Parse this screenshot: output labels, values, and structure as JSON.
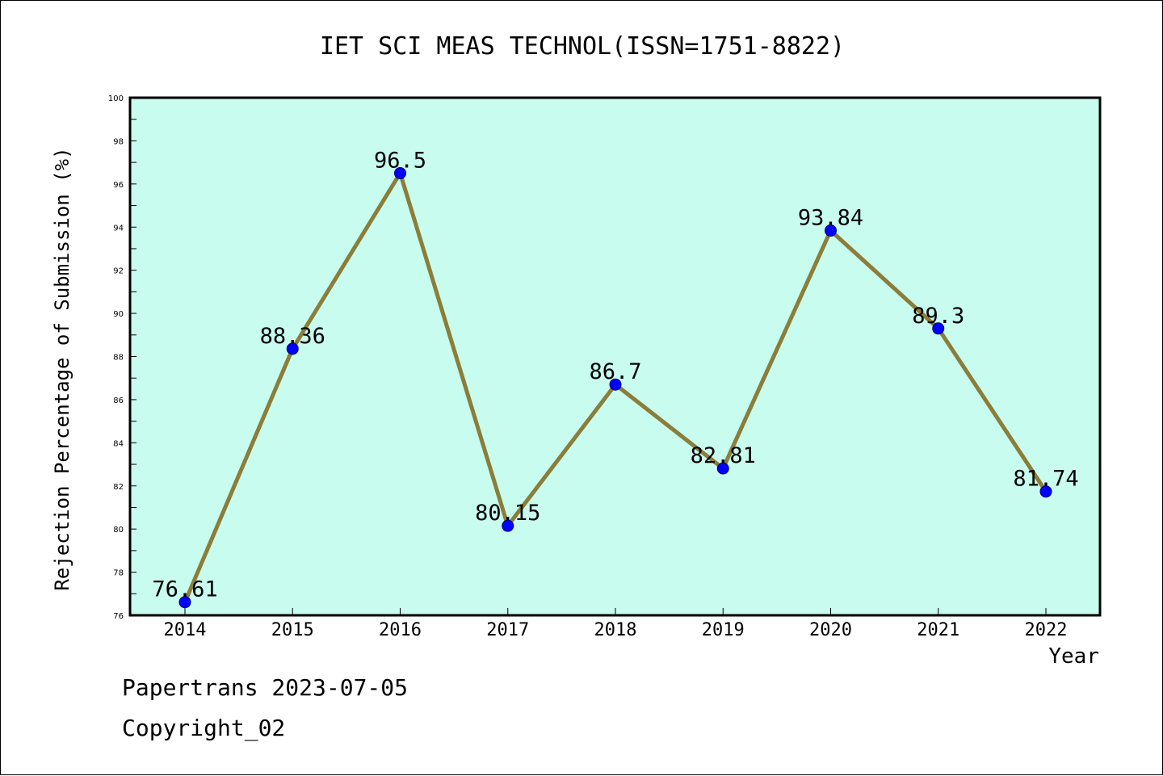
{
  "chart_data": {
    "type": "line",
    "title": "IET SCI MEAS TECHNOL(ISSN=1751-8822)",
    "xlabel": "Year",
    "ylabel": "Rejection Percentage of Submission (%)",
    "categories": [
      "2014",
      "2015",
      "2016",
      "2017",
      "2018",
      "2019",
      "2020",
      "2021",
      "2022"
    ],
    "values": [
      76.61,
      88.36,
      96.5,
      80.15,
      86.7,
      82.81,
      93.84,
      89.3,
      81.74
    ],
    "data_labels": [
      "76.61",
      "88.36",
      "96.5",
      "80.15",
      "86.7",
      "82.81",
      "93.84",
      "89.3",
      "81.74"
    ],
    "ylim": [
      76,
      100
    ],
    "yticks": [
      76,
      78,
      80,
      82,
      84,
      86,
      88,
      90,
      92,
      94,
      96,
      98,
      100
    ],
    "grid": false,
    "legend": "none",
    "colors": {
      "plot_background": "#c8fcee",
      "line": "#8b7d3a",
      "marker": "#0000ff",
      "axes": "#000000"
    }
  },
  "footer": {
    "line1": "Papertrans 2023-07-05",
    "line2": "Copyright_02"
  }
}
